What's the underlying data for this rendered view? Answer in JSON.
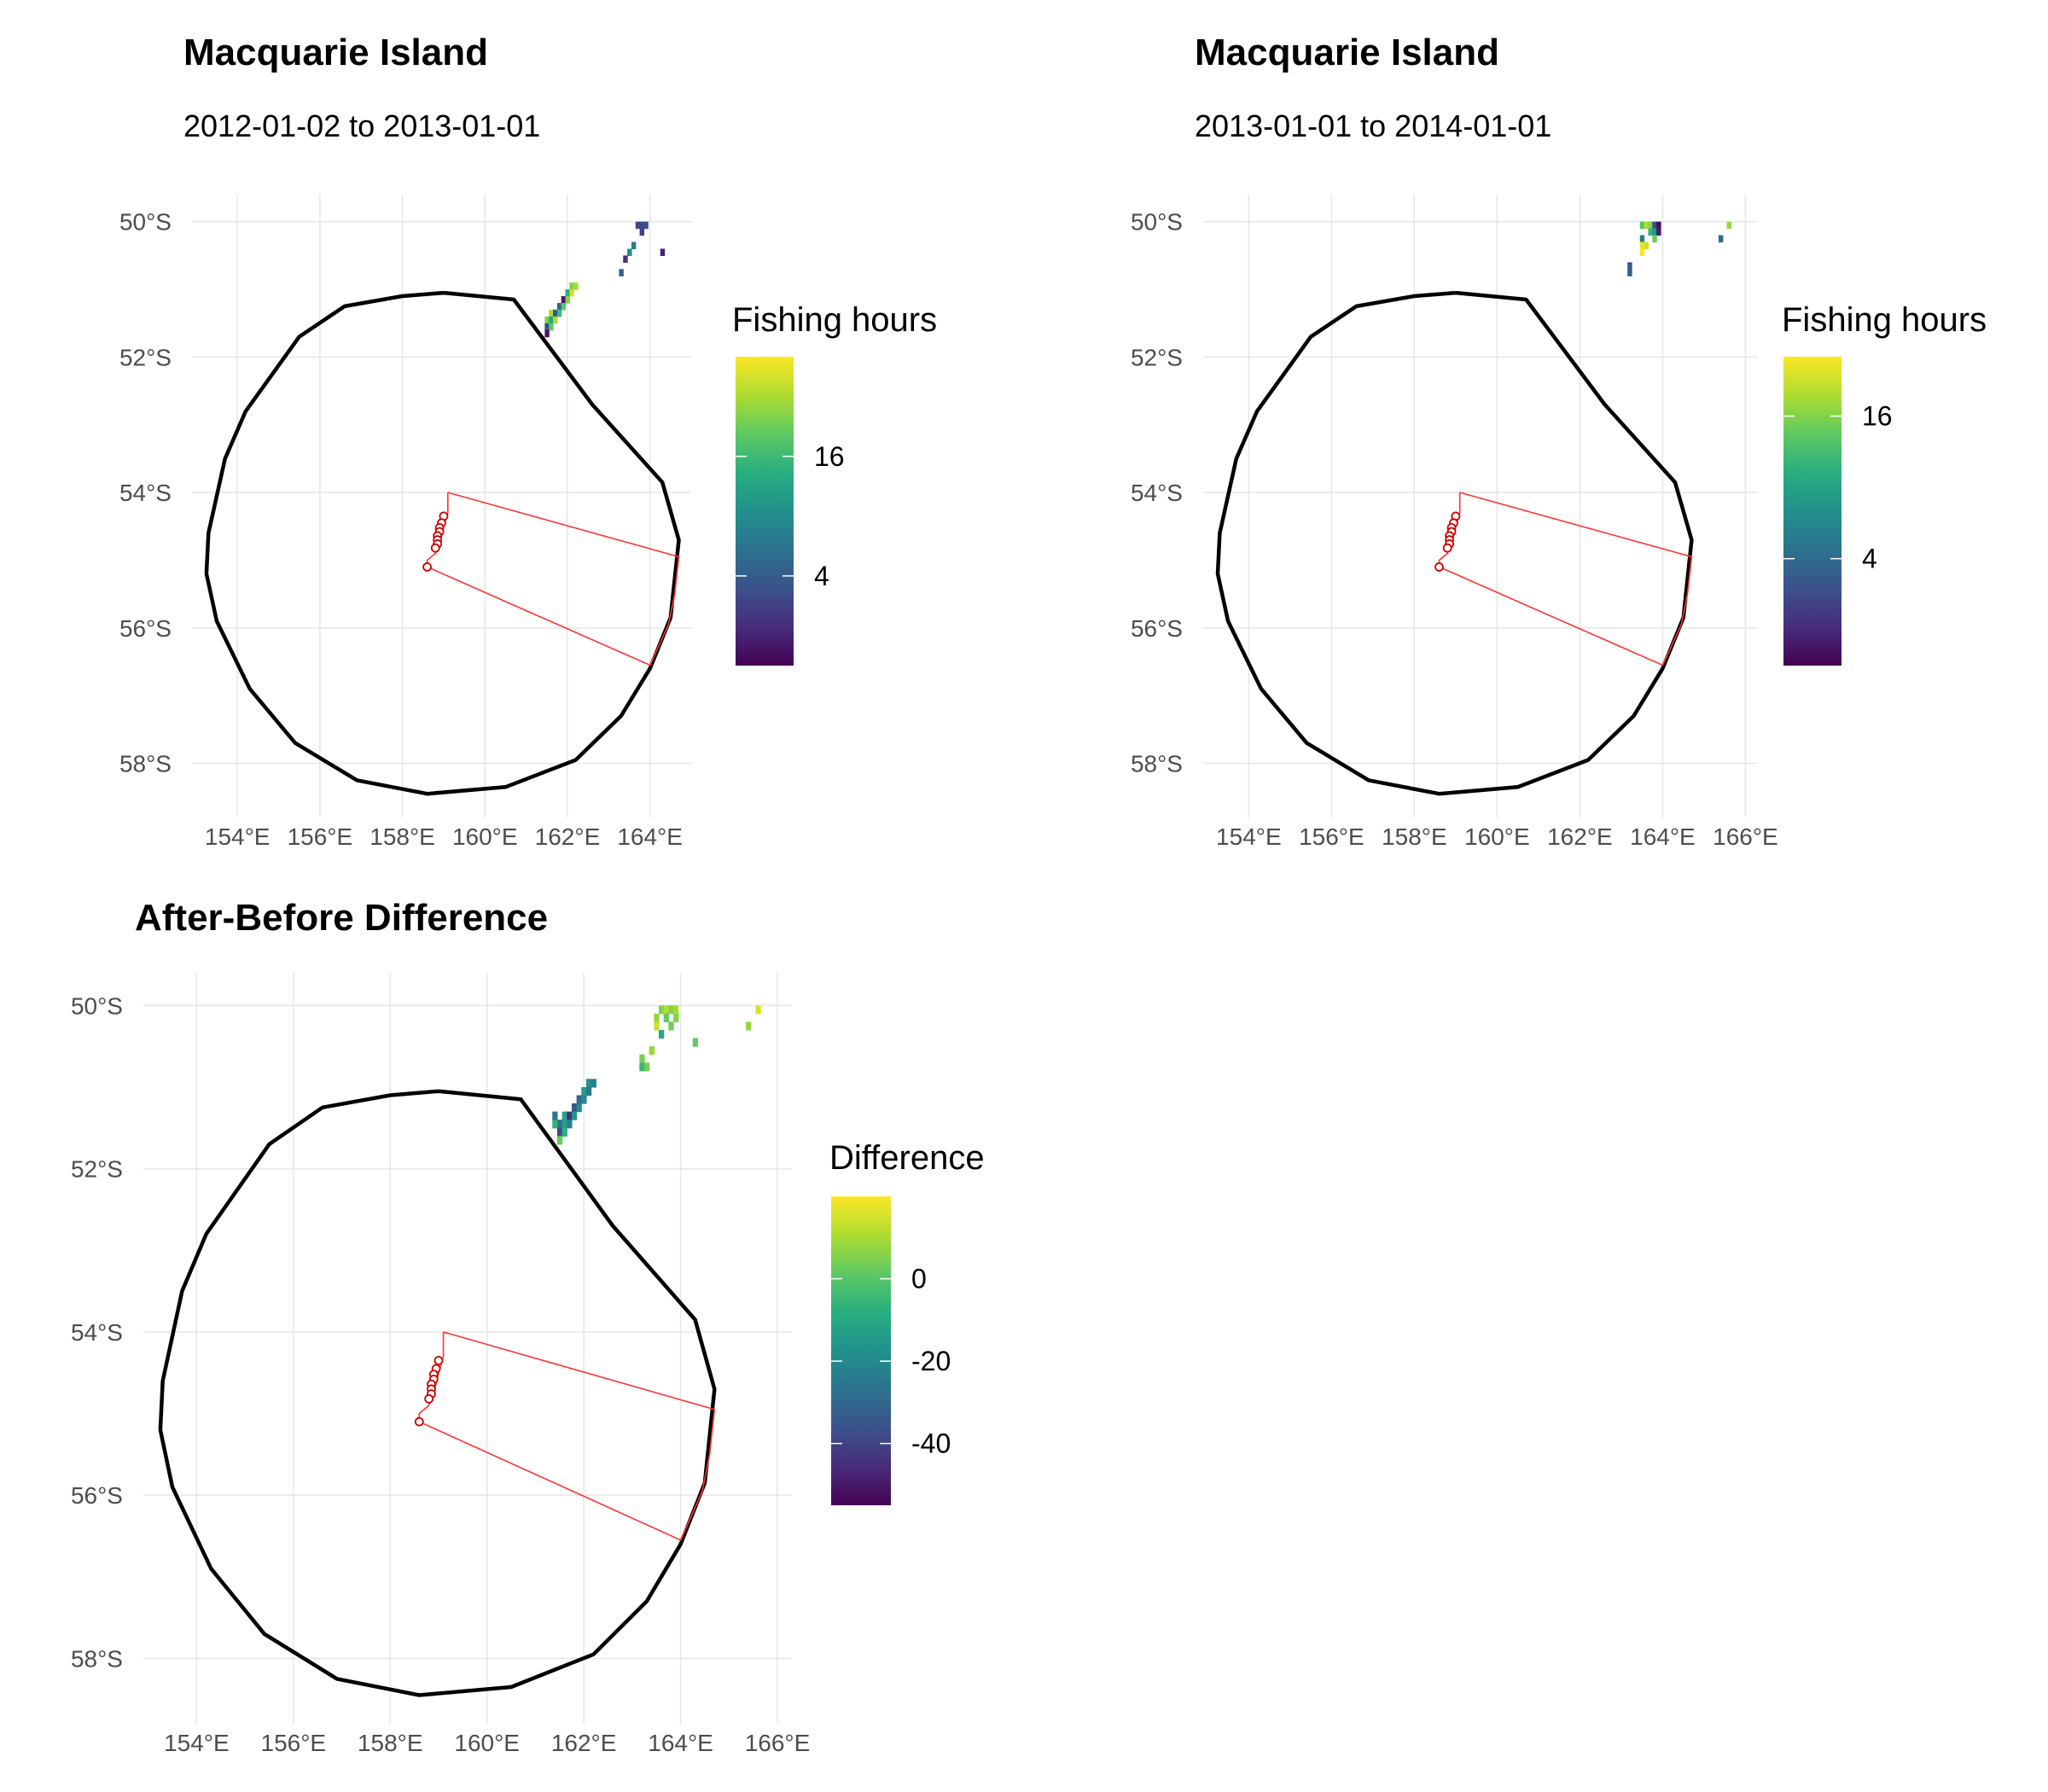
{
  "panels": [
    {
      "id": "before",
      "title": "Macquarie Island",
      "subtitle": "2012-01-02 to 2013-01-01",
      "legend": {
        "title": "Fishing hours",
        "range": [
          -5,
          26
        ],
        "ticks": [
          4,
          16
        ],
        "tick_labels": [
          "4",
          "16"
        ]
      },
      "x_ticks": [
        154,
        156,
        158,
        160,
        162,
        164
      ],
      "x_tick_labels": [
        "154°E",
        "156°E",
        "158°E",
        "160°E",
        "162°E",
        "164°E"
      ],
      "y_ticks": [
        -50,
        -52,
        -54,
        -56,
        -58
      ],
      "y_tick_labels": [
        "50°S",
        "52°S",
        "54°S",
        "56°S",
        "58°S"
      ],
      "lon_range": [
        152.9,
        165.0
      ],
      "lat_range": [
        -58.8,
        -49.6
      ],
      "cells": [
        [
          163.7,
          -50.05,
          2
        ],
        [
          163.8,
          -50.05,
          2
        ],
        [
          163.9,
          -50.05,
          3
        ],
        [
          163.8,
          -50.15,
          1
        ],
        [
          163.6,
          -50.35,
          8
        ],
        [
          163.5,
          -50.45,
          10
        ],
        [
          164.3,
          -50.45,
          -2
        ],
        [
          163.4,
          -50.55,
          -1
        ],
        [
          163.3,
          -50.75,
          4
        ],
        [
          162.1,
          -50.95,
          20
        ],
        [
          162.2,
          -50.95,
          22
        ],
        [
          162.0,
          -51.05,
          14
        ],
        [
          162.1,
          -51.05,
          24
        ],
        [
          161.9,
          -51.15,
          -3
        ],
        [
          162.0,
          -51.15,
          20
        ],
        [
          161.8,
          -51.25,
          5
        ],
        [
          161.9,
          -51.25,
          18
        ],
        [
          161.6,
          -51.35,
          22
        ],
        [
          161.7,
          -51.35,
          3
        ],
        [
          161.8,
          -51.35,
          16
        ],
        [
          161.5,
          -51.45,
          20
        ],
        [
          161.6,
          -51.45,
          13
        ],
        [
          161.7,
          -51.45,
          22
        ],
        [
          161.5,
          -51.55,
          2
        ],
        [
          161.6,
          -51.55,
          18
        ],
        [
          161.5,
          -51.65,
          -3
        ]
      ]
    },
    {
      "id": "after",
      "title": "Macquarie Island",
      "subtitle": "2013-01-01 to 2014-01-01",
      "legend": {
        "title": "Fishing hours",
        "range": [
          -5,
          21
        ],
        "ticks": [
          4,
          16
        ],
        "tick_labels": [
          "4",
          "16"
        ]
      },
      "x_ticks": [
        154,
        156,
        158,
        160,
        162,
        164,
        166
      ],
      "x_tick_labels": [
        "154°E",
        "156°E",
        "158°E",
        "160°E",
        "162°E",
        "164°E",
        "166°E"
      ],
      "y_ticks": [
        -50,
        -52,
        -54,
        -56,
        -58
      ],
      "y_tick_labels": [
        "50°S",
        "52°S",
        "54°S",
        "56°S",
        "58°S"
      ],
      "lon_range": [
        152.9,
        166.3
      ],
      "lat_range": [
        -58.8,
        -49.6
      ],
      "cells": [
        [
          163.5,
          -50.05,
          14
        ],
        [
          163.6,
          -50.05,
          18
        ],
        [
          163.7,
          -50.05,
          16
        ],
        [
          163.8,
          -50.05,
          1
        ],
        [
          163.9,
          -50.05,
          -4
        ],
        [
          165.6,
          -50.05,
          17
        ],
        [
          163.7,
          -50.15,
          12
        ],
        [
          163.8,
          -50.15,
          9
        ],
        [
          163.9,
          -50.15,
          -3
        ],
        [
          163.5,
          -50.25,
          6
        ],
        [
          163.8,
          -50.25,
          15
        ],
        [
          165.4,
          -50.25,
          4
        ],
        [
          163.5,
          -50.35,
          20
        ],
        [
          163.6,
          -50.35,
          19
        ],
        [
          163.5,
          -50.45,
          21
        ],
        [
          163.2,
          -50.65,
          2
        ],
        [
          163.2,
          -50.75,
          3
        ]
      ]
    },
    {
      "id": "difference",
      "title": "After-Before Difference",
      "subtitle": "",
      "legend": {
        "title": "Difference",
        "range": [
          -55,
          20
        ],
        "ticks": [
          -40,
          -20,
          0
        ],
        "tick_labels": [
          "-40",
          "-20",
          "0"
        ]
      },
      "x_ticks": [
        154,
        156,
        158,
        160,
        162,
        164,
        166
      ],
      "x_tick_labels": [
        "154°E",
        "156°E",
        "158°E",
        "160°E",
        "162°E",
        "164°E",
        "166°E"
      ],
      "y_ticks": [
        -50,
        -52,
        -54,
        -56,
        -58
      ],
      "y_tick_labels": [
        "50°S",
        "52°S",
        "54°S",
        "56°S",
        "58°S"
      ],
      "lon_range": [
        152.9,
        166.3
      ],
      "lat_range": [
        -58.8,
        -49.6
      ],
      "cells": [
        [
          163.6,
          -50.05,
          5
        ],
        [
          163.7,
          -50.05,
          12
        ],
        [
          163.8,
          -50.05,
          6
        ],
        [
          163.9,
          -50.05,
          10
        ],
        [
          165.6,
          -50.05,
          16
        ],
        [
          163.5,
          -50.15,
          8
        ],
        [
          163.7,
          -50.15,
          2
        ],
        [
          163.9,
          -50.15,
          6
        ],
        [
          163.5,
          -50.25,
          14
        ],
        [
          163.8,
          -50.25,
          3
        ],
        [
          165.4,
          -50.25,
          8
        ],
        [
          163.6,
          -50.35,
          -10
        ],
        [
          164.3,
          -50.45,
          2
        ],
        [
          163.4,
          -50.55,
          8
        ],
        [
          163.2,
          -50.65,
          4
        ],
        [
          163.2,
          -50.75,
          -5
        ],
        [
          163.3,
          -50.75,
          4
        ],
        [
          162.1,
          -50.95,
          -18
        ],
        [
          162.2,
          -50.95,
          -22
        ],
        [
          162.0,
          -51.05,
          -14
        ],
        [
          162.1,
          -51.05,
          -24
        ],
        [
          161.9,
          -51.15,
          -30
        ],
        [
          162.0,
          -51.15,
          -20
        ],
        [
          161.8,
          -51.25,
          -35
        ],
        [
          161.9,
          -51.25,
          -18
        ],
        [
          161.6,
          -51.35,
          -12
        ],
        [
          161.7,
          -51.35,
          -45
        ],
        [
          161.8,
          -51.35,
          -16
        ],
        [
          161.5,
          -51.45,
          -28
        ],
        [
          161.6,
          -51.45,
          -13
        ],
        [
          161.7,
          -51.45,
          -22
        ],
        [
          161.5,
          -51.55,
          -38
        ],
        [
          161.6,
          -51.55,
          -8
        ],
        [
          161.5,
          -51.65,
          2
        ],
        [
          161.4,
          -51.45,
          -6
        ],
        [
          161.4,
          -51.35,
          -26
        ]
      ]
    }
  ],
  "boundary_eez": [
    [
      159.0,
      -51.05
    ],
    [
      160.7,
      -51.15
    ],
    [
      162.6,
      -52.7
    ],
    [
      164.3,
      -53.85
    ],
    [
      164.7,
      -54.7
    ],
    [
      164.5,
      -55.85
    ],
    [
      164.0,
      -56.6
    ],
    [
      163.3,
      -57.3
    ],
    [
      162.2,
      -57.95
    ],
    [
      160.5,
      -58.35
    ],
    [
      158.6,
      -58.45
    ],
    [
      156.9,
      -58.25
    ],
    [
      155.4,
      -57.7
    ],
    [
      154.3,
      -56.9
    ],
    [
      153.5,
      -55.9
    ],
    [
      153.25,
      -55.2
    ],
    [
      153.3,
      -54.6
    ],
    [
      153.7,
      -53.5
    ],
    [
      154.2,
      -52.8
    ],
    [
      155.5,
      -51.7
    ],
    [
      156.6,
      -51.25
    ],
    [
      158.0,
      -51.1
    ],
    [
      159.0,
      -51.05
    ]
  ],
  "boundary_mpa": [
    [
      159.1,
      -54.0
    ],
    [
      164.7,
      -54.95
    ],
    [
      164.6,
      -55.5
    ],
    [
      164.45,
      -55.95
    ],
    [
      164.0,
      -56.55
    ],
    [
      158.6,
      -55.1
    ],
    [
      158.6,
      -55.0
    ],
    [
      158.8,
      -54.9
    ],
    [
      158.9,
      -54.75
    ],
    [
      159.0,
      -54.5
    ],
    [
      159.1,
      -54.3
    ],
    [
      159.1,
      -54.0
    ]
  ],
  "vessel_positions": [
    [
      159.0,
      -54.35
    ],
    [
      158.95,
      -54.45
    ],
    [
      158.9,
      -54.52
    ],
    [
      158.9,
      -54.58
    ],
    [
      158.85,
      -54.64
    ],
    [
      158.85,
      -54.7
    ],
    [
      158.85,
      -54.76
    ],
    [
      158.8,
      -54.82
    ],
    [
      158.6,
      -55.1
    ]
  ]
}
